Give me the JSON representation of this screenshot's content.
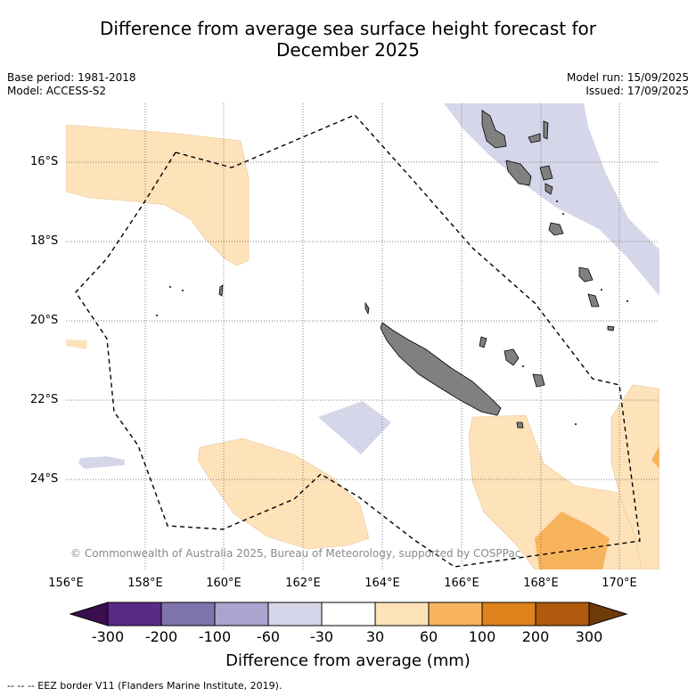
{
  "title_line1": "Difference from average sea surface height forecast for",
  "title_line2": "December 2025",
  "base_period": "Base period: 1981-2018",
  "model": "Model: ACCESS-S2",
  "model_run": "Model run: 15/09/2025",
  "issued": "Issued: 17/09/2025",
  "copyright": "© Commonwealth of Australia 2025, Bureau of Meteorology, supported by COSPPac",
  "lat_labels": [
    "16°S",
    "18°S",
    "20°S",
    "22°S",
    "24°S"
  ],
  "lon_labels": [
    "156°E",
    "158°E",
    "160°E",
    "162°E",
    "164°E",
    "166°E",
    "168°E",
    "170°E"
  ],
  "colorbar": {
    "title": "Difference from average (mm)",
    "tick_labels": [
      "-300",
      "-200",
      "-100",
      "-60",
      "-30",
      "30",
      "60",
      "100",
      "200",
      "300"
    ],
    "colors": [
      "#3b0f4f",
      "#5b2a86",
      "#7f73ad",
      "#aaa4cf",
      "#d6d6ea",
      "#ffffff",
      "#fde2ba",
      "#f8b45d",
      "#e0821b",
      "#b05a0d",
      "#6e3a08"
    ]
  },
  "legend_line": "-- -- -- EEZ border V11 (Flanders Marine Institute, 2019).",
  "colors": {
    "land": "#808080",
    "light_orange": "#fde2ba",
    "orange": "#f8b45d",
    "light_purple": "#d6d6ea"
  }
}
